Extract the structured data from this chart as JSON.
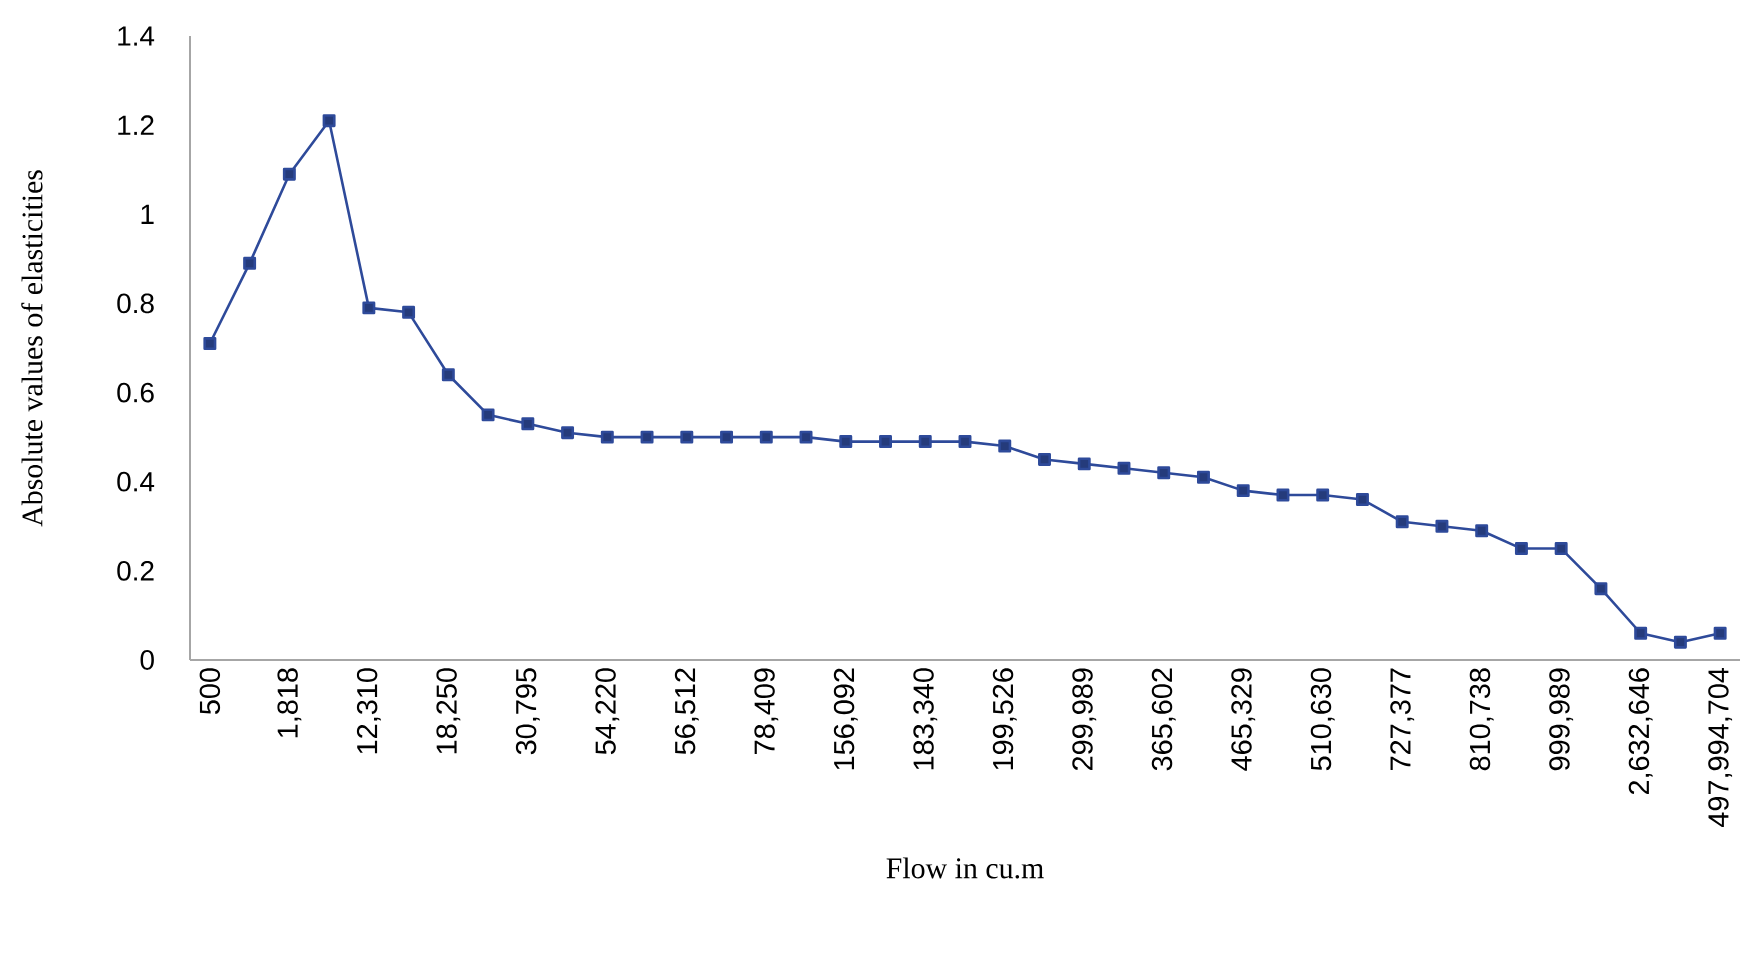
{
  "chart_data": {
    "type": "line",
    "xlabel": "Flow in cu.m",
    "ylabel": "Absolute values of elasticities",
    "categories": [
      "500",
      null,
      "1,818",
      null,
      "12,310",
      null,
      "18,250",
      null,
      "30,795",
      null,
      "54,220",
      null,
      "56,512",
      null,
      "78,409",
      null,
      "156,092",
      null,
      "183,340",
      null,
      "199,526",
      null,
      "299,989",
      null,
      "365,602",
      null,
      "465,329",
      null,
      "510,630",
      null,
      "727,377",
      null,
      "810,738",
      null,
      "999,989",
      null,
      "2,632,646",
      null,
      "497,994,704"
    ],
    "series": [
      {
        "color": "#2e4a9a",
        "values": [
          0.71,
          0.89,
          1.09,
          1.21,
          0.79,
          0.78,
          0.64,
          0.55,
          0.53,
          0.51,
          0.5,
          0.5,
          0.5,
          0.5,
          0.5,
          0.5,
          0.49,
          0.49,
          0.49,
          0.49,
          0.48,
          0.45,
          0.44,
          0.43,
          0.42,
          0.41,
          0.38,
          0.37,
          0.37,
          0.36,
          0.31,
          0.3,
          0.29,
          0.25,
          0.25,
          0.16,
          0.06,
          0.04,
          0.06
        ]
      }
    ],
    "ylim": [
      0,
      1.4
    ],
    "yticks": [
      0,
      0.2,
      0.4,
      0.6,
      0.8,
      1,
      1.2,
      1.4
    ],
    "grid": false,
    "legend": false,
    "marker": "square",
    "line_style": "solid"
  }
}
